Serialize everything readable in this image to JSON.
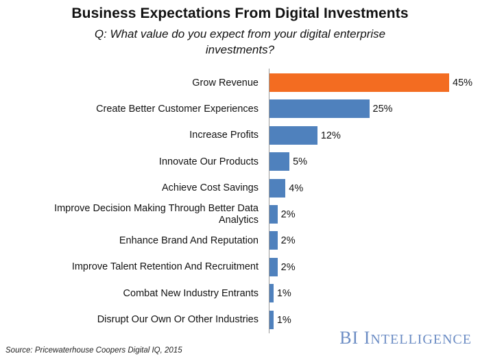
{
  "chart_data": {
    "type": "bar",
    "orientation": "horizontal",
    "title": "Business Expectations From Digital Investments",
    "subtitle": "Q: What value do you expect from your digital enterprise investments?",
    "categories": [
      "Grow Revenue",
      "Create Better Customer Experiences",
      "Increase Profits",
      "Innovate Our Products",
      "Achieve Cost Savings",
      "Improve Decision Making Through Better Data Analytics",
      "Enhance Brand And Reputation",
      "Improve Talent Retention And Recruitment",
      "Combat New Industry Entrants",
      "Disrupt Our Own Or Other Industries"
    ],
    "values": [
      45,
      25,
      12,
      5,
      4,
      2,
      2,
      2,
      1,
      1
    ],
    "value_labels": [
      "45%",
      "25%",
      "12%",
      "5%",
      "4%",
      "2%",
      "2%",
      "2%",
      "1%",
      "1%"
    ],
    "unit": "%",
    "xlim": [
      0,
      45
    ],
    "highlight_index": 0,
    "colors": {
      "default_bar": "#4f81bd",
      "highlight_bar": "#f36c21"
    },
    "grid": false,
    "legend": "none"
  },
  "footer": {
    "source": "Source: Pricewaterhouse Coopers Digital IQ, 2015",
    "brand_first": "BI I",
    "brand_rest": "NTELLIGENCE",
    "brand_color": "#6b8cc4"
  }
}
